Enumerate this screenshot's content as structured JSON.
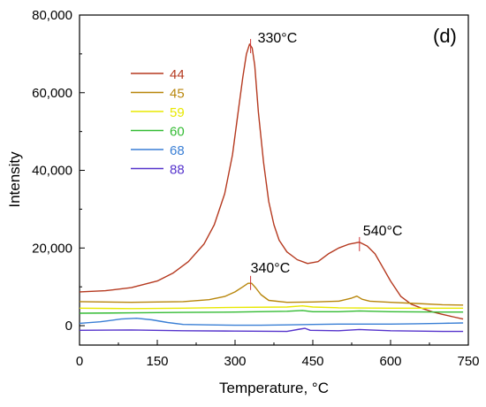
{
  "chart_data": {
    "type": "line",
    "panel_label": "(d)",
    "xlabel": "Temperature, °C",
    "ylabel": "Intensity",
    "xlim": [
      0,
      750
    ],
    "ylim": [
      -5000,
      80000
    ],
    "xticks": [
      0,
      150,
      300,
      450,
      600,
      750
    ],
    "yticks": [
      0,
      20000,
      40000,
      60000,
      80000
    ],
    "xtick_labels": [
      "0",
      "150",
      "300",
      "450",
      "600",
      "750"
    ],
    "ytick_labels": [
      "0",
      "20,000",
      "40,000",
      "60,000",
      "80,000"
    ],
    "grid": false,
    "legend_position": "upper-left",
    "annotations": [
      {
        "text": "330°C",
        "x": 330,
        "y": 72000
      },
      {
        "text": "540°C",
        "x": 540,
        "y": 21000
      },
      {
        "text": "340°C",
        "x": 330,
        "y": 11000
      }
    ],
    "series": [
      {
        "name": "44",
        "color": "#b5391f",
        "x": [
          0,
          50,
          100,
          150,
          180,
          210,
          240,
          260,
          280,
          295,
          305,
          315,
          322,
          328,
          333,
          338,
          345,
          355,
          365,
          375,
          385,
          400,
          420,
          440,
          460,
          480,
          500,
          520,
          540,
          555,
          570,
          585,
          600,
          620,
          640,
          660,
          680,
          700,
          720,
          740
        ],
        "y": [
          8700,
          9000,
          9800,
          11500,
          13500,
          16500,
          21000,
          26000,
          34000,
          44000,
          54000,
          64000,
          70000,
          72500,
          71500,
          67000,
          55000,
          42000,
          32000,
          26000,
          22000,
          19000,
          17000,
          16000,
          16500,
          18500,
          20000,
          21000,
          21500,
          20500,
          18500,
          15000,
          11500,
          7500,
          5500,
          4500,
          3600,
          2900,
          2300,
          1700
        ]
      },
      {
        "name": "45",
        "color": "#b8860b",
        "x": [
          0,
          100,
          200,
          250,
          280,
          300,
          315,
          325,
          332,
          340,
          350,
          365,
          400,
          450,
          500,
          525,
          535,
          545,
          560,
          600,
          650,
          700,
          740
        ],
        "y": [
          6200,
          6000,
          6200,
          6700,
          7500,
          8700,
          10000,
          10900,
          10900,
          9700,
          8000,
          6500,
          6000,
          6100,
          6300,
          7100,
          7600,
          6800,
          6300,
          6000,
          5700,
          5400,
          5300
        ]
      },
      {
        "name": "59",
        "color": "#e8e800",
        "x": [
          0,
          100,
          200,
          300,
          400,
          430,
          450,
          500,
          600,
          700,
          740
        ],
        "y": [
          4500,
          4400,
          4500,
          4700,
          4800,
          5100,
          4800,
          4600,
          4500,
          4500,
          4500
        ]
      },
      {
        "name": "60",
        "color": "#33bb33",
        "x": [
          0,
          100,
          200,
          300,
          400,
          430,
          450,
          500,
          540,
          600,
          700,
          740
        ],
        "y": [
          3200,
          3300,
          3400,
          3500,
          3700,
          3900,
          3600,
          3600,
          3800,
          3600,
          3500,
          3500
        ]
      },
      {
        "name": "68",
        "color": "#3a7fd5",
        "x": [
          0,
          40,
          80,
          110,
          140,
          170,
          200,
          250,
          300,
          350,
          400,
          450,
          500,
          550,
          600,
          650,
          700,
          740
        ],
        "y": [
          600,
          1000,
          1700,
          1900,
          1500,
          800,
          300,
          200,
          100,
          100,
          200,
          300,
          400,
          400,
          400,
          500,
          600,
          700
        ]
      },
      {
        "name": "88",
        "color": "#5533cc",
        "x": [
          0,
          100,
          200,
          300,
          400,
          425,
          435,
          445,
          500,
          540,
          560,
          600,
          700,
          740
        ],
        "y": [
          -1200,
          -1100,
          -1300,
          -1400,
          -1500,
          -900,
          -700,
          -1200,
          -1300,
          -1000,
          -1100,
          -1300,
          -1500,
          -1500
        ]
      }
    ]
  }
}
